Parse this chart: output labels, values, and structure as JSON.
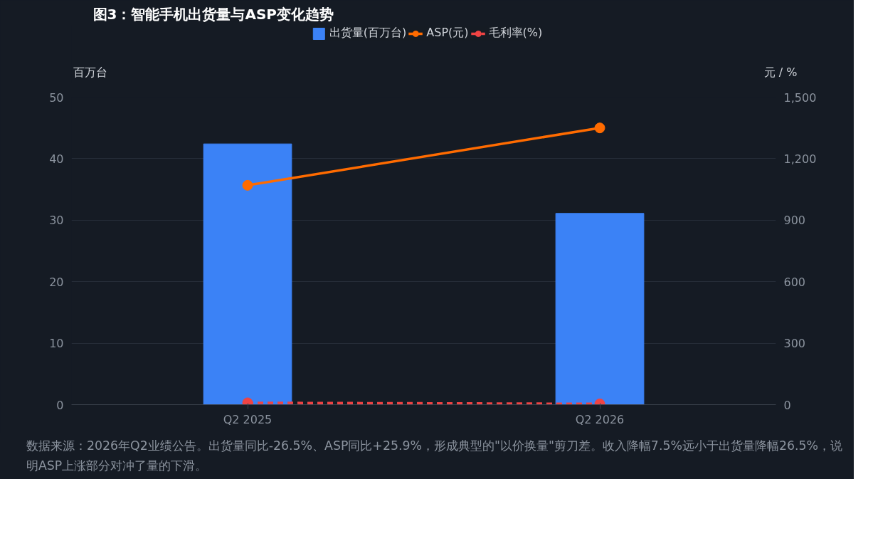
{
  "chart_data": {
    "type": "bar",
    "title": "图3：智能手机出货量与ASP变化趋势",
    "categories": [
      "Q2 2025",
      "Q2 2026"
    ],
    "ylabel": "百万台",
    "y2label": "元 / %",
    "ylim": [
      0,
      50
    ],
    "yticks": [
      0,
      10,
      20,
      30,
      40,
      50
    ],
    "y2lim": [
      0,
      1500
    ],
    "y2ticks": [
      0,
      {
        "value": 300,
        "label": "300"
      },
      {
        "value": 600,
        "label": "600"
      },
      {
        "value": 900,
        "label": "900"
      },
      {
        "value": 1200,
        "label": "1,200"
      },
      {
        "value": 1500,
        "label": "1,500"
      }
    ],
    "series": [
      {
        "name": "出货量(百万台)",
        "color": "#3b82f6",
        "values": [
          42.4,
          31.1
        ]
      },
      {
        "name": "ASP(元)",
        "type": "line",
        "axis": "y2",
        "color": "#ff6b00",
        "line_style": "solid",
        "marker": "circle",
        "values": [
          1070,
          1350
        ]
      },
      {
        "name": "毛利率(%)",
        "type": "line",
        "axis": "y2",
        "color": "#ef4444",
        "line_style": "dashed",
        "marker": "circle",
        "values": [
          9,
          4
        ]
      }
    ],
    "grid": "y",
    "legend": "top",
    "annotations": [
      "数据来源：2026年Q2业绩公告。出货量同比-26.5%、ASP同比+25.9%，形成典型的\"以价换量\"剪刀差。收入降幅7.5%远小于出货量降幅26.5%，说明ASP上涨部分对冲了量的下滑。"
    ]
  }
}
